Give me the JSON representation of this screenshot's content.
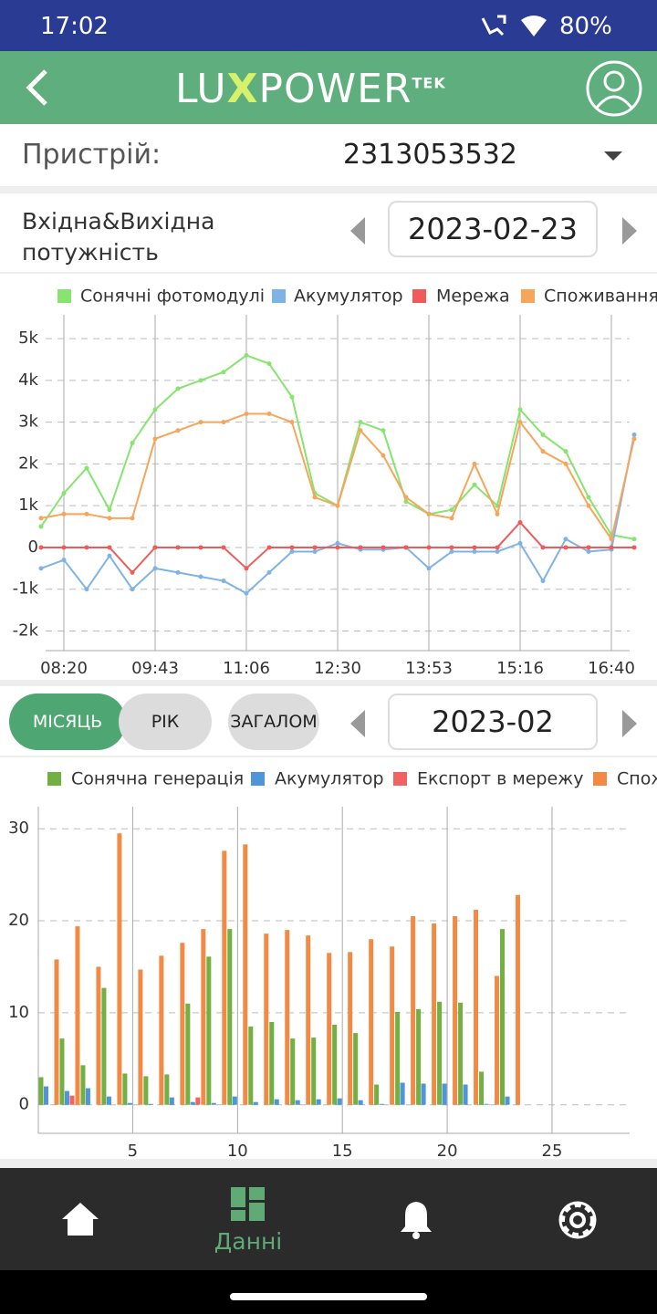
{
  "status_bar": {
    "time": "17:02",
    "battery": "80%"
  },
  "header": {
    "logo_left": "LU",
    "logo_x": "X",
    "logo_right": "POWER",
    "logo_sup": "TEK"
  },
  "device": {
    "label": "Пристрій:",
    "value": "2313053532"
  },
  "power": {
    "title_line1": "Вхідна&Вихідна",
    "title_line2": "потужність",
    "date": "2023-02-23"
  },
  "period": {
    "buttons": [
      "МІСЯЦЬ",
      "РІК",
      "ЗАГАЛОМ"
    ],
    "date": "2023-02"
  },
  "nav": {
    "active_label": "Данні"
  },
  "chart_data": [
    {
      "type": "line",
      "grid": true,
      "categories": [
        null,
        "08:20",
        null,
        null,
        null,
        "09:43",
        null,
        null,
        null,
        "11:06",
        null,
        null,
        null,
        "12:30",
        null,
        null,
        null,
        "13:53",
        null,
        null,
        null,
        "15:16",
        null,
        null,
        null,
        "16:40",
        null
      ],
      "ylim": [
        -2470,
        5570
      ],
      "yticks": [
        {
          "value": -2000,
          "label": "-2k"
        },
        {
          "value": -1000,
          "label": "-1k"
        },
        0,
        {
          "value": 1000,
          "label": "1k"
        },
        {
          "value": 2000,
          "label": "2k"
        },
        {
          "value": 3000,
          "label": "3k"
        },
        {
          "value": 4000,
          "label": "4k"
        },
        {
          "value": 5000,
          "label": "5k"
        }
      ],
      "series": [
        {
          "name": "Сонячні фотомодулі",
          "color": "#86e46f",
          "values": [
            500,
            1300,
            1900,
            900,
            2500,
            3300,
            3800,
            4000,
            4200,
            4600,
            4400,
            3600,
            1300,
            1000,
            3000,
            2800,
            1100,
            800,
            900,
            1500,
            1000,
            3300,
            2700,
            2300,
            1200,
            300,
            200
          ]
        },
        {
          "name": "Акумулятор",
          "color": "#7fb3e6",
          "values": [
            -500,
            -300,
            -1000,
            -200,
            -1000,
            -500,
            -600,
            -700,
            -800,
            -1100,
            -600,
            -100,
            -100,
            100,
            -50,
            -50,
            0,
            -500,
            -100,
            -100,
            -100,
            100,
            -800,
            200,
            -100,
            -50,
            2700
          ]
        },
        {
          "name": "Мережа",
          "color": "#ef5b5b",
          "values": [
            0,
            0,
            0,
            0,
            -600,
            0,
            0,
            0,
            0,
            -500,
            0,
            0,
            0,
            0,
            0,
            0,
            0,
            0,
            0,
            0,
            0,
            600,
            0,
            0,
            0,
            0,
            0
          ]
        },
        {
          "name": "Споживання",
          "color": "#f7a55a",
          "values": [
            700,
            800,
            800,
            700,
            700,
            2600,
            2800,
            3000,
            3000,
            3200,
            3200,
            3000,
            1200,
            1000,
            2800,
            2200,
            1200,
            800,
            700,
            2000,
            800,
            3000,
            2300,
            2000,
            1000,
            200,
            2600
          ]
        }
      ]
    },
    {
      "type": "bar",
      "grid": true,
      "x": [
        1,
        2,
        3,
        4,
        5,
        6,
        7,
        8,
        9,
        10,
        11,
        12,
        13,
        14,
        15,
        16,
        17,
        18,
        19,
        20,
        21,
        22,
        23
      ],
      "xlim": [
        0.5,
        28.7
      ],
      "xticks": [
        5,
        10,
        15,
        20,
        25
      ],
      "ylim": [
        -3.1,
        32.4
      ],
      "yticks": [
        0,
        10,
        20,
        30
      ],
      "series": [
        {
          "name": "Сонячна генерація",
          "color": "#72b043",
          "values": [
            3.0,
            7.2,
            4.3,
            12.7,
            3.4,
            3.1,
            3.3,
            11.0,
            16.1,
            19.1,
            8.5,
            9.0,
            7.2,
            7.3,
            8.7,
            7.8,
            2.2,
            10.1,
            10.4,
            11.2,
            11.1,
            3.6,
            19.1
          ]
        },
        {
          "name": "Акумулятор",
          "color": "#4f95d8",
          "values": [
            2.0,
            1.5,
            1.8,
            0.9,
            0.2,
            0.1,
            0.8,
            0.3,
            0.2,
            0.9,
            0.3,
            0.6,
            0.5,
            0.6,
            0.7,
            0.5,
            0.1,
            2.4,
            2.3,
            2.3,
            2.2,
            0.1,
            0.9
          ]
        },
        {
          "name": "Експорт в мережу",
          "color": "#ef6363",
          "values": [
            0,
            1.0,
            0,
            0,
            0,
            0,
            0,
            0.8,
            0,
            0,
            0,
            0,
            0,
            0,
            0,
            0,
            0,
            0,
            0,
            0,
            0,
            0,
            0
          ]
        },
        {
          "name": "Споживання",
          "color": "#f08a44",
          "values": [
            15.8,
            19.4,
            15.0,
            29.5,
            14.7,
            16.2,
            17.6,
            19.1,
            27.6,
            28.3,
            18.6,
            19.0,
            18.4,
            16.5,
            16.6,
            18.0,
            17.2,
            20.5,
            19.7,
            20.5,
            21.2,
            14.0,
            22.8
          ]
        }
      ]
    }
  ]
}
